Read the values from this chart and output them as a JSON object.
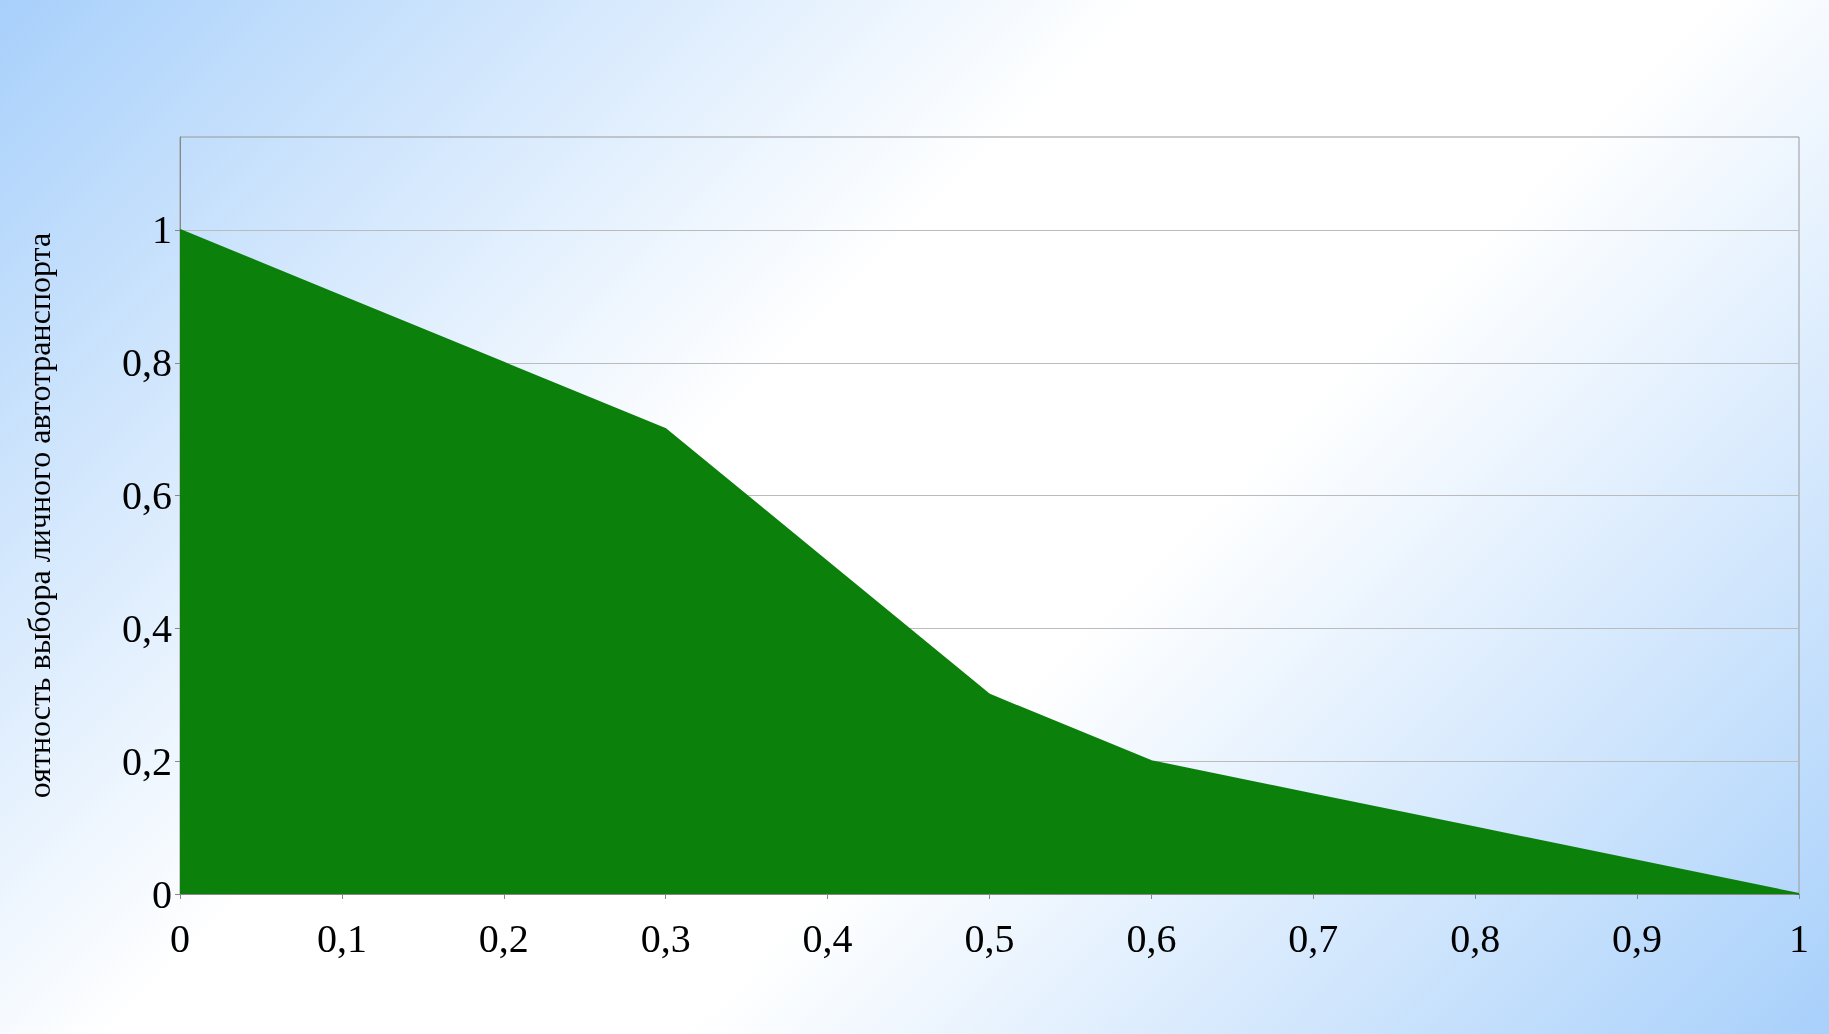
{
  "chart_data": {
    "type": "area",
    "ylabel": "оятность выбора личного автотранспорта",
    "x": [
      0,
      0.1,
      0.2,
      0.3,
      0.4,
      0.5,
      0.6,
      0.7,
      0.8,
      0.9,
      1
    ],
    "series": [
      {
        "color": "#0b800b",
        "values": [
          1,
          0.9,
          0.8,
          0.7,
          0.5,
          0.3,
          0.2,
          0.15,
          0.1,
          0.05,
          0
        ]
      }
    ],
    "xlim": [
      0,
      1
    ],
    "xticks": [
      0,
      {
        "value": 0.1,
        "label": "0,1"
      },
      {
        "value": 0.2,
        "label": "0,2"
      },
      {
        "value": 0.3,
        "label": "0,3"
      },
      {
        "value": 0.4,
        "label": "0,4"
      },
      {
        "value": 0.5,
        "label": "0,5"
      },
      {
        "value": 0.6,
        "label": "0,6"
      },
      {
        "value": 0.7,
        "label": "0,7"
      },
      {
        "value": 0.8,
        "label": "0,8"
      },
      {
        "value": 0.9,
        "label": "0,9"
      },
      1
    ],
    "ylim": [
      0,
      1.14
    ],
    "yticks": [
      0,
      {
        "value": 0.2,
        "label": "0,2"
      },
      {
        "value": 0.4,
        "label": "0,4"
      },
      {
        "value": 0.6,
        "label": "0,6"
      },
      {
        "value": 0.8,
        "label": "0,8"
      },
      1
    ],
    "grid": "y"
  }
}
